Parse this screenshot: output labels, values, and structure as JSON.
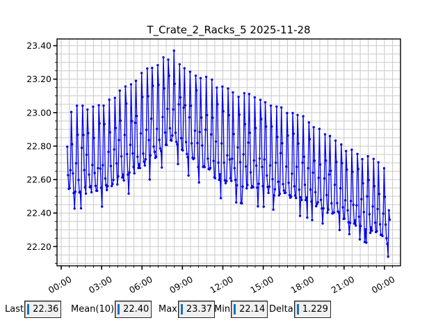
{
  "chart": {
    "title": "T_Crate_2_Racks_5 2025-11-28",
    "frame_color": "#000000",
    "grid_color": "#c9c9c9",
    "background": "#ffffff"
  },
  "chart_data": {
    "type": "line",
    "title": "T_Crate_2_Racks_5 2025-11-28",
    "grid": true,
    "legend_visible": false,
    "x_axis": {
      "tick_hours": [
        0,
        3,
        6,
        9,
        12,
        15,
        18,
        21,
        24
      ],
      "tick_labels": [
        "00:00",
        "03:00",
        "06:00",
        "09:00",
        "12:00",
        "15:00",
        "18:00",
        "21:00",
        "00:00"
      ],
      "lim_hours": [
        -0.31,
        25.19
      ],
      "minor_step_hours": 0.6
    },
    "y_axis": {
      "ticks": [
        22.2,
        22.4,
        22.6,
        22.8,
        23.0,
        23.2,
        23.4
      ],
      "tick_labels": [
        "22.20",
        "22.40",
        "22.60",
        "22.80",
        "23.00",
        "23.20",
        "23.40"
      ],
      "lim": [
        22.085,
        23.44
      ],
      "minor_step": 0.05
    },
    "series": [
      {
        "name": "T_Crate_2_Racks_5",
        "color": "#0000ee",
        "marker": "circle",
        "marker_radius": 1.7,
        "line_width": 1.3,
        "sample_step_hours": 0.06,
        "t_start_hours": 0.45,
        "t_end_hours": 24.42,
        "cycle_period_hours": 0.4,
        "envelope_t_hours": [
          0,
          3,
          6,
          8.3,
          9,
          12,
          15,
          18,
          21,
          24,
          24.5
        ],
        "envelope_upper": [
          23.03,
          23.06,
          23.25,
          23.37,
          23.3,
          23.17,
          23.08,
          22.98,
          22.8,
          22.7,
          22.62
        ],
        "envelope_lower": [
          22.48,
          22.5,
          22.63,
          22.8,
          22.72,
          22.55,
          22.5,
          22.44,
          22.34,
          22.22,
          22.14
        ]
      }
    ],
    "stats": {
      "last": 22.36,
      "mean_10": 22.4,
      "max": 23.37,
      "min": 22.14,
      "delta": 1.229
    }
  },
  "stats_bar": {
    "caret_color": "#1a6fc4",
    "field_bg": "#f0f0f0",
    "items": [
      {
        "id": "last",
        "label": "Last",
        "value": "22.36"
      },
      {
        "id": "mean10",
        "label": "Mean(10)",
        "value": "22.40"
      },
      {
        "id": "max",
        "label": "Max",
        "value": "23.37"
      },
      {
        "id": "min",
        "label": "Min",
        "value": "22.14"
      },
      {
        "id": "delta",
        "label": "Delta",
        "value": "1.229"
      }
    ]
  }
}
